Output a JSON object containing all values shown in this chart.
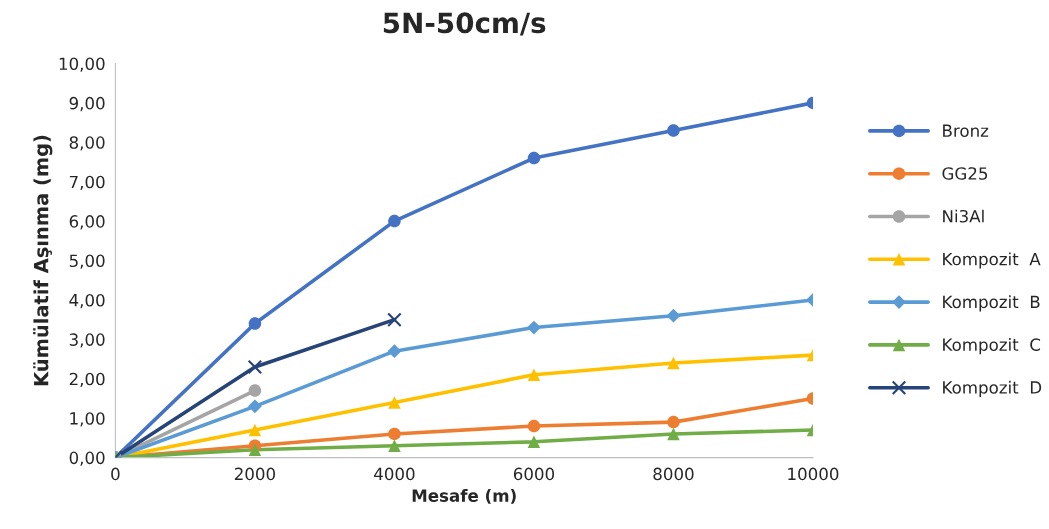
{
  "chart_data": {
    "type": "line",
    "title": "5N-50cm/s",
    "xlabel": "Mesafe (m)",
    "ylabel": "Kümülatif Aşınma (mg)",
    "x": [
      0,
      2000,
      4000,
      6000,
      8000,
      10000
    ],
    "xlim": [
      0,
      10000
    ],
    "xticks": [
      0,
      2000,
      4000,
      6000,
      8000,
      10000
    ],
    "ylim": [
      0,
      10
    ],
    "yticks": [
      {
        "value": 0,
        "label": "0,00"
      },
      {
        "value": 1,
        "label": "1,00"
      },
      {
        "value": 2,
        "label": "2,00"
      },
      {
        "value": 3,
        "label": "3,00"
      },
      {
        "value": 4,
        "label": "4,00"
      },
      {
        "value": 5,
        "label": "5,00"
      },
      {
        "value": 6,
        "label": "6,00"
      },
      {
        "value": 7,
        "label": "7,00"
      },
      {
        "value": 8,
        "label": "8,00"
      },
      {
        "value": 9,
        "label": "9,00"
      },
      {
        "value": 10,
        "label": "10,00"
      }
    ],
    "grid": false,
    "legend": "right",
    "series": [
      {
        "name": "Bronz",
        "color": "#4472c4",
        "marker": "circle",
        "values": [
          0,
          3.4,
          6.0,
          7.6,
          8.3,
          9.0
        ]
      },
      {
        "name": "GG25",
        "color": "#ed7d31",
        "marker": "circle",
        "values": [
          0,
          0.3,
          0.6,
          0.8,
          0.9,
          1.5
        ]
      },
      {
        "name": "Ni3Al",
        "color": "#a5a5a5",
        "marker": "circle",
        "x": [
          0,
          2000
        ],
        "values": [
          0,
          1.7
        ]
      },
      {
        "name": "Kompozit  A",
        "color": "#ffc000",
        "marker": "triangle",
        "values": [
          0,
          0.7,
          1.4,
          2.1,
          2.4,
          2.6
        ]
      },
      {
        "name": "Kompozit  B",
        "color": "#5b9bd5",
        "marker": "diamond",
        "values": [
          0,
          1.3,
          2.7,
          3.3,
          3.6,
          4.0
        ]
      },
      {
        "name": "Kompozit  C",
        "color": "#70ad47",
        "marker": "triangle",
        "values": [
          0,
          0.2,
          0.3,
          0.4,
          0.6,
          0.7
        ]
      },
      {
        "name": "Kompozit  D",
        "color": "#264478",
        "marker": "cross",
        "x": [
          0,
          2000,
          4000
        ],
        "values": [
          0,
          2.3,
          3.5
        ]
      }
    ]
  }
}
